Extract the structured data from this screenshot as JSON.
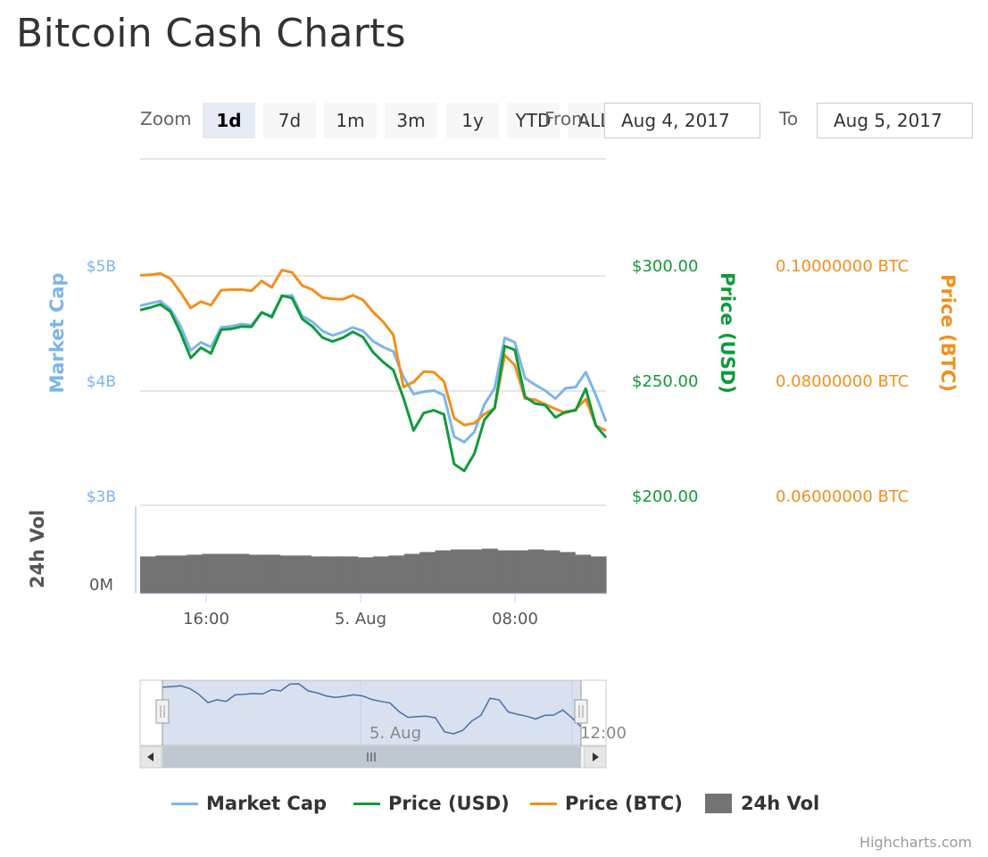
{
  "title": "Bitcoin Cash Charts",
  "range_selector": {
    "zoom_label": "Zoom",
    "buttons": [
      "1d",
      "7d",
      "1m",
      "3m",
      "1y",
      "YTD",
      "ALL"
    ],
    "active": "1d",
    "from_label": "From",
    "to_label": "To",
    "from_value": "Aug 4, 2017",
    "to_value": "Aug 5, 2017"
  },
  "credits": "Highcharts.com",
  "colors": {
    "market_cap": "#7cb5ec",
    "price_usd": "#0f9b3a",
    "price_btc": "#f28f1c",
    "volume": "#737373",
    "navigator": "#4572a7"
  },
  "chart_data": {
    "type": "line",
    "x_ticks": [
      "16:00",
      "5. Aug",
      "08:00"
    ],
    "axes": {
      "market_cap": {
        "title": "Market Cap",
        "ticks": [
          "$5B",
          "$4B",
          "$3B"
        ],
        "range": [
          3,
          5
        ]
      },
      "price_usd": {
        "title": "Price (USD)",
        "ticks": [
          "$300.00",
          "$250.00",
          "$200.00"
        ],
        "range": [
          200,
          300
        ]
      },
      "price_btc": {
        "title": "Price (BTC)",
        "ticks": [
          "0.10000000 BTC",
          "0.08000000 BTC",
          "0.06000000 BTC"
        ],
        "range": [
          0.06,
          0.1
        ]
      },
      "volume": {
        "title": "24h Vol",
        "ticks": [
          "0M"
        ]
      }
    },
    "series": [
      {
        "name": "Market Cap",
        "values": [
          4.74,
          4.76,
          4.78,
          4.71,
          4.56,
          4.35,
          4.42,
          4.38,
          4.55,
          4.56,
          4.58,
          4.57,
          4.68,
          4.65,
          4.82,
          4.83,
          4.65,
          4.6,
          4.52,
          4.48,
          4.51,
          4.55,
          4.52,
          4.43,
          4.38,
          4.34,
          4.12,
          3.97,
          3.99,
          4.0,
          3.96,
          3.6,
          3.55,
          3.64,
          3.88,
          4.02,
          4.46,
          4.42,
          4.11,
          4.05,
          4.0,
          3.93,
          4.02,
          4.03,
          4.16,
          3.96,
          3.73
        ]
      },
      {
        "name": "Price (USD)",
        "values": [
          285.1,
          286.2,
          287.6,
          284.4,
          275.1,
          264.2,
          268.7,
          266.2,
          276.5,
          276.9,
          277.9,
          277.8,
          284.1,
          282.0,
          291.4,
          290.3,
          281.2,
          278.0,
          273.1,
          271.4,
          273.0,
          275.6,
          273.3,
          266.7,
          262.4,
          258.9,
          246.8,
          232.6,
          240.2,
          241.4,
          239.6,
          218.0,
          215.0,
          222.5,
          237.3,
          242.4,
          269.4,
          267.7,
          247.3,
          244.3,
          243.6,
          238.3,
          240.7,
          241.4,
          250.8,
          234.7,
          229.5
        ]
      },
      {
        "name": "Price (BTC)",
        "values": [
          0.1001,
          0.1002,
          0.1004,
          0.0995,
          0.0971,
          0.0944,
          0.0955,
          0.0949,
          0.0975,
          0.0976,
          0.0976,
          0.0974,
          0.0991,
          0.098,
          0.101,
          0.1006,
          0.0983,
          0.0976,
          0.0962,
          0.096,
          0.0959,
          0.0966,
          0.0958,
          0.0937,
          0.092,
          0.0897,
          0.0806,
          0.0815,
          0.0833,
          0.0832,
          0.0816,
          0.0752,
          0.074,
          0.0743,
          0.0759,
          0.0769,
          0.0862,
          0.0844,
          0.0786,
          0.0784,
          0.0776,
          0.0768,
          0.0761,
          0.0767,
          0.0785,
          0.0739,
          0.073
        ]
      },
      {
        "name": "24h Vol",
        "values": [
          0.43,
          0.44,
          0.44,
          0.45,
          0.46,
          0.46,
          0.46,
          0.45,
          0.45,
          0.44,
          0.44,
          0.43,
          0.43,
          0.43,
          0.42,
          0.43,
          0.44,
          0.46,
          0.48,
          0.5,
          0.51,
          0.51,
          0.52,
          0.5,
          0.5,
          0.51,
          0.5,
          0.48,
          0.45,
          0.43
        ]
      }
    ],
    "navigator_labels": [
      "5. Aug",
      "12:00"
    ],
    "legend": [
      "Market Cap",
      "Price (USD)",
      "Price (BTC)",
      "24h Vol"
    ],
    "grid": true,
    "legend_position": "bottom"
  }
}
